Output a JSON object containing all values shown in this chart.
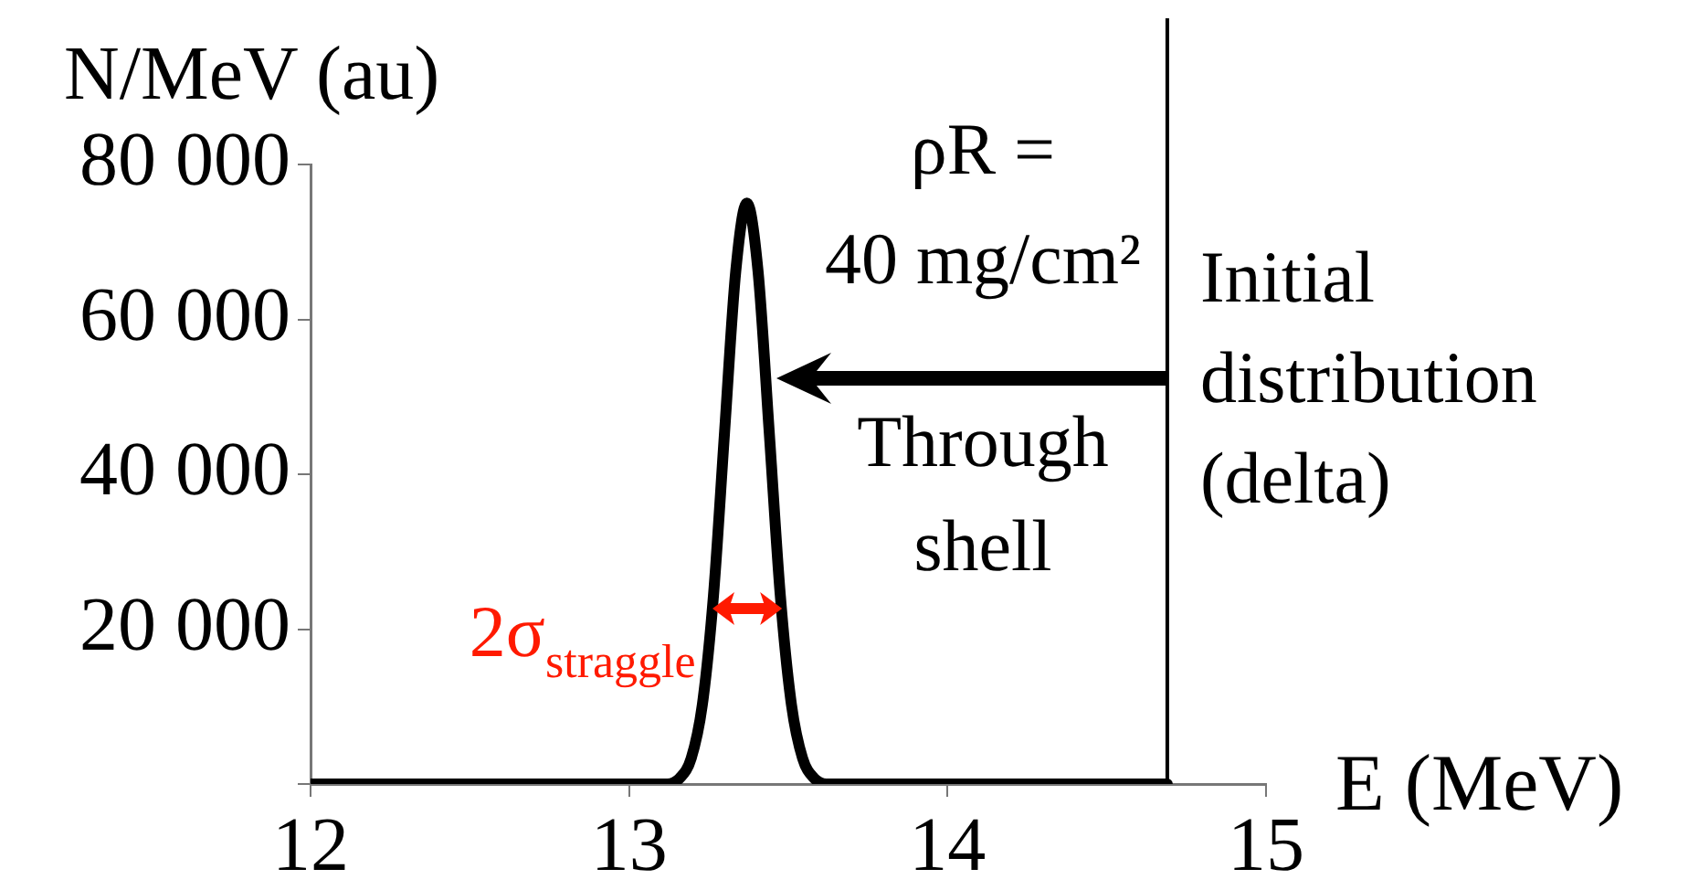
{
  "chart_data": {
    "type": "line",
    "xlabel": "E (MeV)",
    "ylabel": "N/MeV (au)",
    "x": [
      12,
      13.12,
      13.16,
      13.195,
      13.23,
      13.265,
      13.3,
      13.335,
      13.37,
      13.405,
      13.44,
      13.475,
      13.51,
      13.545,
      13.58,
      13.62,
      14.69
    ],
    "series": [
      {
        "color": "#000000",
        "values": [
          0,
          0,
          800,
          3300,
          10200,
          24300,
          45500,
          66200,
          75000,
          66200,
          45500,
          24300,
          10200,
          3300,
          800,
          0,
          0
        ]
      }
    ],
    "xlim": [
      12,
      15
    ],
    "xticks": [
      12,
      13,
      14,
      15
    ],
    "ylim": [
      0,
      80000
    ],
    "yticks": [
      {
        "value": 0,
        "label": null
      },
      {
        "value": 20000,
        "label": "20 000"
      },
      {
        "value": 40000,
        "label": "40 000"
      },
      {
        "value": 60000,
        "label": "60 000"
      },
      {
        "value": 80000,
        "label": "80 000"
      }
    ],
    "ref_lines": [
      {
        "axis": "x",
        "value": 14.69,
        "label": "Initial distribution (delta)",
        "color": "#000000"
      }
    ],
    "annotations": [
      "ρR =",
      "40 mg/cm²",
      "Through shell",
      {
        "text": "2σ$_{straggle}$",
        "x": 13.37,
        "y": 22600
      }
    ],
    "grid": false,
    "legend": false,
    "marker": "none",
    "line_style": "solid"
  }
}
